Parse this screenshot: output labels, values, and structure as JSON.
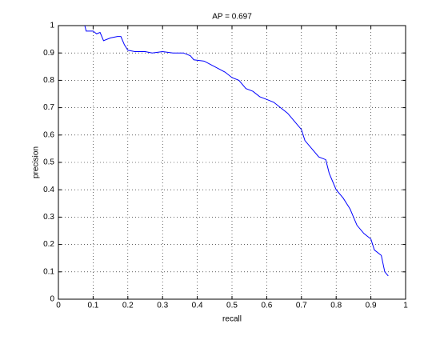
{
  "chart_data": {
    "type": "line",
    "title": "AP = 0.697",
    "x_label": "recall",
    "y_label": "precision",
    "x": [
      0.076,
      0.08,
      0.1,
      0.11,
      0.12,
      0.13,
      0.15,
      0.17,
      0.18,
      0.19,
      0.2,
      0.22,
      0.25,
      0.27,
      0.3,
      0.33,
      0.36,
      0.38,
      0.39,
      0.42,
      0.45,
      0.48,
      0.5,
      0.52,
      0.54,
      0.56,
      0.58,
      0.6,
      0.62,
      0.64,
      0.66,
      0.68,
      0.7,
      0.71,
      0.73,
      0.75,
      0.77,
      0.78,
      0.8,
      0.82,
      0.84,
      0.85,
      0.86,
      0.88,
      0.9,
      0.91,
      0.93,
      0.94,
      0.95
    ],
    "series": [
      {
        "color": "#0000ff",
        "values": [
          1,
          0.98,
          0.98,
          0.97,
          0.975,
          0.945,
          0.955,
          0.96,
          0.96,
          0.93,
          0.91,
          0.905,
          0.905,
          0.9,
          0.905,
          0.9,
          0.9,
          0.89,
          0.875,
          0.87,
          0.85,
          0.83,
          0.81,
          0.8,
          0.77,
          0.76,
          0.74,
          0.73,
          0.72,
          0.7,
          0.68,
          0.65,
          0.62,
          0.58,
          0.55,
          0.52,
          0.51,
          0.46,
          0.4,
          0.37,
          0.33,
          0.3,
          0.27,
          0.24,
          0.22,
          0.18,
          0.16,
          0.1,
          0.085
        ]
      }
    ],
    "xlim": [
      0,
      1
    ],
    "ylim": [
      0,
      1
    ],
    "xticks": [
      0,
      0.1,
      0.2,
      0.3,
      0.4,
      0.5,
      0.6,
      0.7,
      0.8,
      0.9,
      1
    ],
    "yticks": [
      0,
      0.1,
      0.2,
      0.3,
      0.4,
      0.5,
      0.6,
      0.7,
      0.8,
      0.9,
      1
    ],
    "grid": true
  }
}
